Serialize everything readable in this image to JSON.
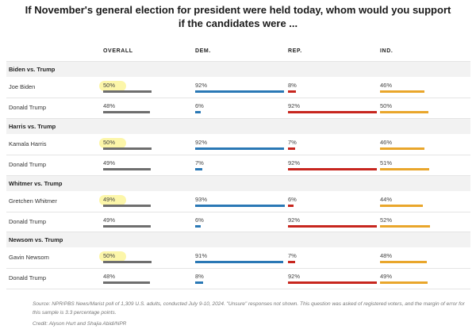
{
  "title_line1": "If November's general election for president were held today, whom would you support",
  "title_line2": "if the candidates were ...",
  "columns": [
    "OVERALL",
    "DEM.",
    "REP.",
    "IND."
  ],
  "colors": {
    "overall": "#6e6e6e",
    "dem": "#2a78b5",
    "rep": "#c7261e",
    "ind": "#e9a62b",
    "highlight": "#fbf49a"
  },
  "chart_data": {
    "type": "bar",
    "title": "If November's general election for president were held today, whom would you support if the candidates were ...",
    "unit": "%",
    "xlim": [
      0,
      100
    ],
    "columns": [
      "OVERALL",
      "DEM.",
      "REP.",
      "IND."
    ],
    "groups": [
      {
        "name": "Biden vs. Trump",
        "rows": [
          {
            "candidate": "Joe Biden",
            "values": [
              50,
              92,
              8,
              46
            ],
            "highlight": true
          },
          {
            "candidate": "Donald Trump",
            "values": [
              48,
              6,
              92,
              50
            ],
            "highlight": false
          }
        ]
      },
      {
        "name": "Harris vs. Trump",
        "rows": [
          {
            "candidate": "Kamala Harris",
            "values": [
              50,
              92,
              7,
              46
            ],
            "highlight": true
          },
          {
            "candidate": "Donald Trump",
            "values": [
              49,
              7,
              92,
              51
            ],
            "highlight": false
          }
        ]
      },
      {
        "name": "Whitmer vs. Trump",
        "rows": [
          {
            "candidate": "Gretchen Whitmer",
            "values": [
              49,
              93,
              6,
              44
            ],
            "highlight": true
          },
          {
            "candidate": "Donald Trump",
            "values": [
              49,
              6,
              92,
              52
            ],
            "highlight": false
          }
        ]
      },
      {
        "name": "Newsom vs. Trump",
        "rows": [
          {
            "candidate": "Gavin Newsom",
            "values": [
              50,
              91,
              7,
              48
            ],
            "highlight": true
          },
          {
            "candidate": "Donald Trump",
            "values": [
              48,
              8,
              92,
              49
            ],
            "highlight": false
          }
        ]
      }
    ]
  },
  "source": "Source: NPR/PBS News/Marist poll of 1,309 U.S. adults, conducted July 9-10, 2024. \"Unsure\" responses not shown. This question was asked of registered voters, and the margin of error for this sample is 3.3 percentage points.",
  "credit": "Credit: Alyson Hurt and Shajia Abidi/NPR"
}
